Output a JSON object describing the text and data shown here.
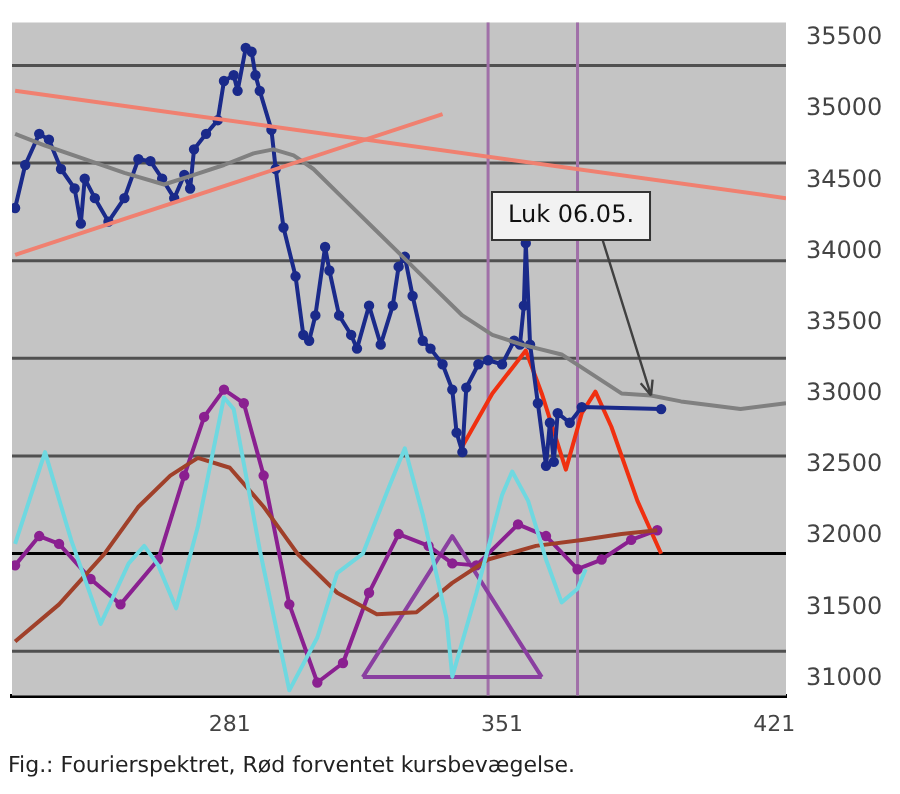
{
  "chart_data": {
    "type": "line",
    "annotations": [
      {
        "text": "Luk 06.05.",
        "x": 389.3,
        "y": 32989
      },
      "Fig.: Fourierspektret, Rød forventet kursbevægelse."
    ],
    "xlim": [
      225,
      424
    ],
    "xticks": [
      281,
      351,
      421
    ],
    "ylim": [
      30880,
      35610
    ],
    "yticks": [
      31000,
      31500,
      32000,
      32500,
      33000,
      33500,
      34000,
      34500,
      35000,
      35500
    ],
    "grid": false,
    "legend": false,
    "ref_lines": [
      {
        "axis": "y",
        "value": 35308,
        "color": "#505050"
      },
      {
        "axis": "y",
        "value": 34622,
        "color": "#505050"
      },
      {
        "axis": "y",
        "value": 33936,
        "color": "#505050"
      },
      {
        "axis": "y",
        "value": 33250,
        "color": "#505050"
      },
      {
        "axis": "y",
        "value": 32564,
        "color": "#505050"
      },
      {
        "axis": "y",
        "value": 31192,
        "color": "#505050"
      },
      {
        "axis": "y",
        "value": 31878,
        "color": "#000000"
      },
      {
        "axis": "x",
        "value": 347.4,
        "color": "#a070a8"
      },
      {
        "axis": "x",
        "value": 370.4,
        "color": "#a070a8"
      }
    ],
    "series": [
      {
        "color": "#f08070",
        "x": [
          225.8,
          424
        ],
        "values": [
          35130,
          34375
        ],
        "marker": "none"
      },
      {
        "color": "#f08070",
        "x": [
          225.8,
          335.7
        ],
        "values": [
          33977,
          34965
        ],
        "marker": "none"
      },
      {
        "color": "#808080",
        "x": [
          225.8,
          233.5,
          243.7,
          253.9,
          264.1,
          271.8,
          279.5,
          287.1,
          292.2,
          297.4,
          302.5,
          310.1,
          317.8,
          325.5,
          333.1,
          340.8,
          348.5,
          356.1,
          366.3,
          374.0,
          381.7,
          389.3,
          397.0,
          404.7,
          412.3,
          424.0
        ],
        "values": [
          34827,
          34745,
          34649,
          34553,
          34471,
          34539,
          34608,
          34690,
          34718,
          34676,
          34580,
          34375,
          34169,
          33963,
          33757,
          33551,
          33414,
          33346,
          33277,
          33140,
          33003,
          32989,
          32947,
          32920,
          32893,
          32934
        ],
        "marker": "none"
      },
      {
        "color": "#6fd8e0",
        "x": [
          225.8,
          233.5,
          240.2,
          247.8,
          255.0,
          259.0,
          262.6,
          267.2,
          272.8,
          279.5,
          282.0,
          288.7,
          296.3,
          303.5,
          308.6,
          315.2,
          321.9,
          326.0,
          330.6,
          336.7,
          338.2,
          344.4,
          351.0,
          353.6,
          357.7,
          362.3,
          366.3,
          370.4,
          372.5
        ],
        "values": [
          31946,
          32591,
          31974,
          31384,
          31809,
          31932,
          31795,
          31493,
          32070,
          32975,
          32893,
          31905,
          30917,
          31288,
          31740,
          31877,
          32344,
          32618,
          32152,
          31425,
          31013,
          31603,
          32289,
          32454,
          32248,
          31836,
          31535,
          31631,
          31768
        ],
        "marker": "none"
      },
      {
        "color": "#a0402a",
        "x": [
          225.8,
          237.1,
          248.8,
          257.5,
          265.7,
          272.8,
          281.0,
          289.7,
          298.4,
          308.6,
          318.8,
          329.0,
          338.2,
          347.4,
          359.7,
          371.5,
          381.7,
          390.9
        ],
        "values": [
          31260,
          31521,
          31877,
          32207,
          32426,
          32550,
          32481,
          32207,
          31877,
          31603,
          31452,
          31466,
          31672,
          31836,
          31932,
          31974,
          32015,
          32042
        ],
        "marker": "none"
      },
      {
        "color": "#8a2090",
        "x": [
          225.8,
          232.0,
          237.1,
          245.2,
          252.9,
          262.6,
          269.3,
          274.4,
          279.5,
          284.6,
          289.7,
          296.3,
          303.5,
          310.1,
          316.8,
          324.4,
          332.1,
          338.2,
          344.4,
          355.1,
          362.3,
          370.4,
          376.6,
          384.2,
          390.9
        ],
        "values": [
          31795,
          32001,
          31946,
          31699,
          31521,
          31836,
          32426,
          32838,
          33030,
          32934,
          32426,
          31521,
          30972,
          31109,
          31603,
          32015,
          31932,
          31809,
          31795,
          32083,
          32001,
          31768,
          31836,
          31974,
          32042
        ],
        "marker": "circle"
      },
      {
        "color": "#1a2a8a",
        "x": [
          225.8,
          228.4,
          232.0,
          234.5,
          237.6,
          241.1,
          242.7,
          243.7,
          246.3,
          249.8,
          253.9,
          257.5,
          260.6,
          263.6,
          266.7,
          269.3,
          270.8,
          271.8,
          274.9,
          277.9,
          279.5,
          282.0,
          283.0,
          285.1,
          286.6,
          287.6,
          288.7,
          291.7,
          292.8,
          294.8,
          297.9,
          299.9,
          301.4,
          303.0,
          305.5,
          306.6,
          309.1,
          312.2,
          313.7,
          316.8,
          319.8,
          322.9,
          324.4,
          326.0,
          328.0,
          330.6,
          332.6,
          335.7,
          338.2,
          339.3,
          340.8,
          341.8,
          344.9,
          347.4,
          351.0,
          354.1,
          355.6,
          356.6,
          357.1,
          358.2,
          360.2,
          362.3,
          363.3,
          364.3,
          365.3,
          368.4,
          371.5,
          391.9
        ],
        "values": [
          34306,
          34608,
          34827,
          34786,
          34580,
          34443,
          34196,
          34512,
          34375,
          34210,
          34375,
          34649,
          34635,
          34512,
          34375,
          34539,
          34443,
          34718,
          34827,
          34923,
          35198,
          35239,
          35129,
          35431,
          35404,
          35239,
          35129,
          34855,
          34580,
          34169,
          33826,
          33414,
          33373,
          33551,
          34032,
          33867,
          33551,
          33414,
          33318,
          33620,
          33346,
          33620,
          33894,
          33963,
          33688,
          33373,
          33318,
          33208,
          33030,
          32728,
          32591,
          33044,
          33208,
          33236,
          33208,
          33373,
          33346,
          33620,
          34059,
          33346,
          32934,
          32495,
          32797,
          32522,
          32865,
          32797,
          32907,
          32893
        ],
        "marker": "circle"
      },
      {
        "color": "#8a3fa0",
        "x": [
          315.2,
          338.2,
          361.2
        ],
        "values": [
          31010,
          32000,
          31010
        ],
        "marker": "none"
      },
      {
        "color": "#8a3fa0",
        "x": [
          315.2,
          361.2
        ],
        "values": [
          31010,
          31010
        ],
        "marker": "none"
      },
      {
        "color": "#f03010",
        "x": [
          340.8,
          348.5,
          357.1,
          361.2,
          367.4,
          371.5,
          375.0,
          379.1,
          385.8,
          391.9
        ],
        "values": [
          32632,
          33003,
          33304,
          33003,
          32468,
          32865,
          33016,
          32769,
          32248,
          31877
        ],
        "marker": "none"
      }
    ]
  }
}
